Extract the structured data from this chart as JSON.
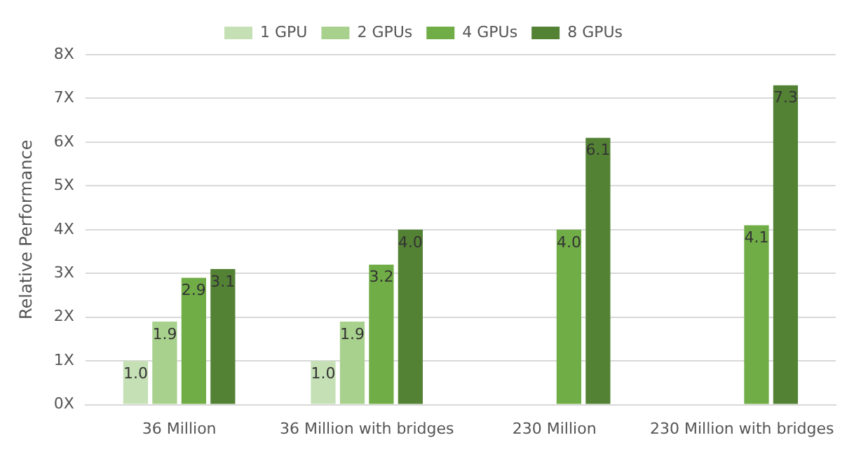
{
  "chart_data": {
    "type": "bar",
    "ylabel": "Relative Performance",
    "categories": [
      "36 Million",
      "36 Million with bridges",
      "230 Million",
      "230 Million with bridges"
    ],
    "series": [
      {
        "name": "1 GPU",
        "color": "#c5e0b4",
        "values": [
          1.0,
          1.0,
          null,
          null
        ],
        "value_labels": [
          "1.0",
          "1.0",
          null,
          null
        ]
      },
      {
        "name": "2 GPUs",
        "color": "#a9d18e",
        "values": [
          1.9,
          1.9,
          null,
          null
        ],
        "value_labels": [
          "1.9",
          "1.9",
          null,
          null
        ]
      },
      {
        "name": "4 GPUs",
        "color": "#70ad47",
        "values": [
          2.9,
          3.2,
          4.0,
          4.1
        ],
        "value_labels": [
          "2.9",
          "3.2",
          "4.0",
          "4.1"
        ]
      },
      {
        "name": "8 GPUs",
        "color": "#548235",
        "values": [
          3.1,
          4.0,
          6.1,
          7.3
        ],
        "value_labels": [
          "3.1",
          "4.0",
          "6.1",
          "7.3"
        ]
      }
    ],
    "ylim": [
      0,
      8
    ],
    "yticks": [
      {
        "value": 0,
        "label": "0X"
      },
      {
        "value": 1,
        "label": "1X"
      },
      {
        "value": 2,
        "label": "2X"
      },
      {
        "value": 3,
        "label": "3X"
      },
      {
        "value": 4,
        "label": "4X"
      },
      {
        "value": 5,
        "label": "5X"
      },
      {
        "value": 6,
        "label": "6X"
      },
      {
        "value": 7,
        "label": "7X"
      },
      {
        "value": 8,
        "label": "8X"
      }
    ],
    "grid": "y",
    "legend": "top"
  }
}
